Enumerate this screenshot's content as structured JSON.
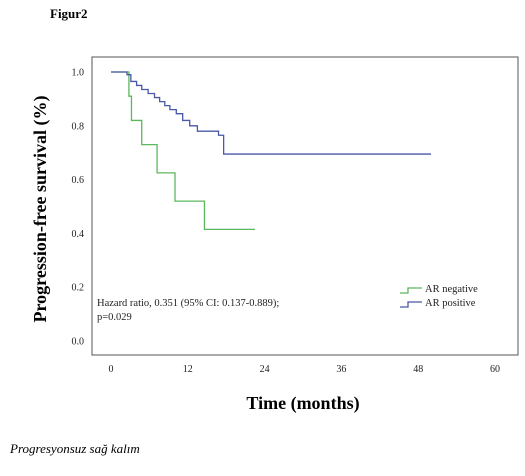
{
  "figure_label": "Figur2",
  "caption": "Progresyonsuz sağ kalım",
  "chart_data": {
    "type": "line",
    "step": true,
    "title": "",
    "xlabel": "Time (months)",
    "ylabel": "Progression-free survival (%)",
    "xlim": [
      0,
      60
    ],
    "ylim": [
      0,
      1.0
    ],
    "x_ticks": [
      "0",
      "12",
      "24",
      "36",
      "48",
      "60"
    ],
    "y_ticks": [
      "0.0",
      "0.2",
      "0.4",
      "0.6",
      "0.8",
      "1.0"
    ],
    "grid": false,
    "legend_position": "bottom-right",
    "series": [
      {
        "name": "AR negative",
        "color": "#5cb85c",
        "x": [
          0,
          2.8,
          3.2,
          4.8,
          7.2,
          10.0,
          14.6,
          22.5
        ],
        "y": [
          1.0,
          0.91,
          0.82,
          0.73,
          0.625,
          0.52,
          0.415,
          0.415
        ]
      },
      {
        "name": "AR positive",
        "color": "#4a58a8",
        "x": [
          0,
          2.5,
          3.1,
          4.0,
          4.8,
          5.8,
          6.8,
          7.6,
          8.4,
          9.2,
          10.2,
          11.2,
          12.3,
          13.5,
          16.8,
          17.6,
          50.0
        ],
        "y": [
          1.0,
          0.99,
          0.965,
          0.95,
          0.935,
          0.92,
          0.905,
          0.89,
          0.875,
          0.86,
          0.845,
          0.82,
          0.8,
          0.78,
          0.765,
          0.695,
          0.695
        ]
      }
    ],
    "annotations": [
      "Hazard ratio, 0.351 (95% CI: 0.137-0.889);",
      "p=0.029"
    ]
  }
}
